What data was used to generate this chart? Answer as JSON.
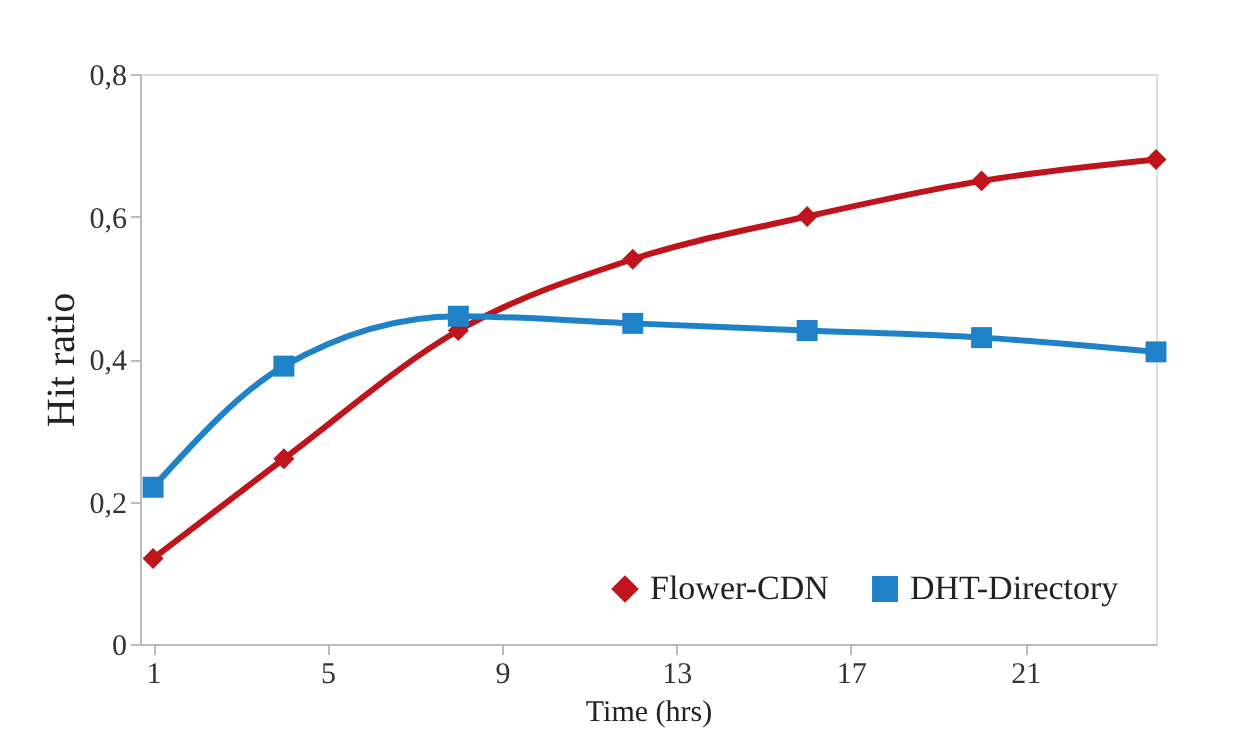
{
  "chart_data": {
    "type": "line",
    "xlabel": "Time (hrs)",
    "ylabel": "Hit  ratio",
    "x": [
      1,
      4,
      8,
      12,
      16,
      20,
      24
    ],
    "series": [
      {
        "name": "Flower-CDN",
        "color": "#c0141c",
        "marker": "diamond",
        "values": [
          0.12,
          0.26,
          0.44,
          0.54,
          0.6,
          0.65,
          0.68
        ]
      },
      {
        "name": "DHT-Directory",
        "color": "#1f82c8",
        "marker": "square",
        "values": [
          0.22,
          0.39,
          0.46,
          0.45,
          0.44,
          0.43,
          0.41
        ]
      }
    ],
    "xlim": [
      0.7,
      24
    ],
    "xticks": [
      1,
      5,
      9,
      13,
      17,
      21
    ],
    "ylim": [
      0,
      0.8
    ],
    "yticks": [
      {
        "value": 0,
        "label": "0"
      },
      {
        "value": 0.2,
        "label": "0,2"
      },
      {
        "value": 0.4,
        "label": "0,4"
      },
      {
        "value": 0.6,
        "label": "0,6"
      },
      {
        "value": 0.8,
        "label": "0,8"
      }
    ],
    "grid": false,
    "legend": "bottom right",
    "line_style": "solid"
  }
}
